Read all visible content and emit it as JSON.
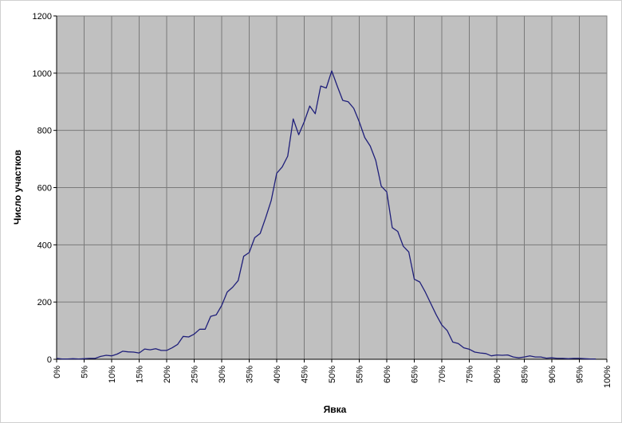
{
  "chart_data": {
    "type": "line",
    "title": "",
    "xlabel": "Явка",
    "ylabel": "Число участков",
    "xlim": [
      0,
      100
    ],
    "ylim": [
      0,
      1200
    ],
    "x_ticks": [
      "0%",
      "5%",
      "10%",
      "15%",
      "20%",
      "25%",
      "30%",
      "35%",
      "40%",
      "45%",
      "50%",
      "55%",
      "60%",
      "65%",
      "70%",
      "75%",
      "80%",
      "85%",
      "90%",
      "95%",
      "100%"
    ],
    "y_ticks": [
      "0",
      "200",
      "400",
      "600",
      "800",
      "1000",
      "1200"
    ],
    "grid": "vertical and horizontal",
    "colors": {
      "plot_area": "#c0c0c0",
      "line": "#1f1f7a",
      "grid": "#7a7a7a"
    },
    "series": [
      {
        "x": [
          0,
          1,
          2,
          3,
          4,
          5,
          6,
          7,
          8,
          9,
          10,
          11,
          12,
          13,
          14,
          15,
          16,
          17,
          18,
          19,
          20,
          21,
          22,
          23,
          24,
          25,
          26,
          27,
          28,
          29,
          30,
          31,
          32,
          33,
          34,
          35,
          36,
          37,
          38,
          39,
          40,
          41,
          42,
          43,
          44,
          45,
          46,
          47,
          48,
          49,
          50,
          51,
          52,
          53,
          54,
          55,
          56,
          57,
          58,
          59,
          60,
          61,
          62,
          63,
          64,
          65,
          66,
          67,
          68,
          69,
          70,
          71,
          72,
          73,
          74,
          75,
          76,
          77,
          78,
          79,
          80,
          81,
          82,
          83,
          84,
          85,
          86,
          87,
          88,
          89,
          90,
          91,
          92,
          93,
          94,
          95,
          96,
          97,
          98
        ],
        "values": [
          3,
          1,
          1,
          2,
          1,
          2,
          3,
          3,
          10,
          14,
          12,
          18,
          28,
          26,
          25,
          22,
          36,
          33,
          37,
          31,
          31,
          40,
          52,
          80,
          78,
          88,
          105,
          105,
          150,
          155,
          188,
          235,
          252,
          275,
          360,
          373,
          425,
          440,
          495,
          555,
          650,
          672,
          710,
          840,
          785,
          830,
          885,
          858,
          955,
          948,
          1008,
          955,
          905,
          900,
          877,
          830,
          775,
          745,
          695,
          605,
          585,
          460,
          447,
          395,
          375,
          280,
          270,
          235,
          195,
          155,
          120,
          100,
          60,
          55,
          40,
          35,
          25,
          22,
          20,
          12,
          15,
          14,
          15,
          8,
          5,
          8,
          12,
          8,
          8,
          4,
          5,
          3,
          3,
          2,
          3,
          3,
          2,
          1,
          1
        ]
      }
    ]
  }
}
